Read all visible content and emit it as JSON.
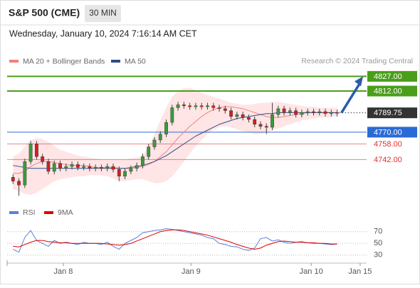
{
  "header": {
    "symbol": "S&P 500 (CME)",
    "timeframe": "30 MIN",
    "datetime": "Wednesday, January 10, 2024 7:16:14 AM CET"
  },
  "chart_data": [
    {
      "type": "candlestick",
      "source": "Research © 2024 Trading Central",
      "up_color": "#3a9a3a",
      "down_color": "#cc2222",
      "open": [
        4724,
        4720,
        4716,
        4740,
        4758,
        4745,
        4740,
        4730,
        4738,
        4733,
        4735,
        4737,
        4734,
        4735,
        4733,
        4734,
        4733,
        4735,
        4732,
        4725,
        4730,
        4733,
        4736,
        4745,
        4755,
        4762,
        4768,
        4780,
        4795,
        4798,
        4797,
        4796,
        4797,
        4796,
        4797,
        4795,
        4794,
        4792,
        4786,
        4788,
        4785,
        4783,
        4778,
        4776,
        4775,
        4788,
        4794,
        4790,
        4792,
        4788,
        4790,
        4791,
        4790,
        4791,
        4789,
        4790
      ],
      "high": [
        4727,
        4723,
        4743,
        4761,
        4761,
        4748,
        4743,
        4741,
        4741,
        4738,
        4740,
        4740,
        4738,
        4738,
        4737,
        4737,
        4738,
        4738,
        4735,
        4733,
        4736,
        4739,
        4748,
        4758,
        4765,
        4771,
        4783,
        4798,
        4801,
        4801,
        4800,
        4800,
        4800,
        4800,
        4800,
        4798,
        4797,
        4795,
        4791,
        4791,
        4788,
        4786,
        4781,
        4779,
        4800,
        4797,
        4797,
        4795,
        4795,
        4793,
        4794,
        4794,
        4794,
        4794,
        4793,
        4793
      ],
      "low": [
        4717,
        4705,
        4713,
        4737,
        4742,
        4737,
        4727,
        4727,
        4730,
        4730,
        4732,
        4731,
        4731,
        4730,
        4730,
        4730,
        4730,
        4729,
        4720,
        4722,
        4727,
        4730,
        4733,
        4742,
        4752,
        4759,
        4765,
        4777,
        4792,
        4794,
        4793,
        4793,
        4793,
        4793,
        4792,
        4791,
        4789,
        4783,
        4783,
        4782,
        4780,
        4775,
        4773,
        4768,
        4772,
        4785,
        4787,
        4787,
        4785,
        4785,
        4787,
        4787,
        4787,
        4786,
        4786,
        4786
      ],
      "close": [
        4720,
        4716,
        4740,
        4758,
        4745,
        4740,
        4730,
        4738,
        4733,
        4735,
        4737,
        4734,
        4735,
        4733,
        4734,
        4733,
        4735,
        4732,
        4725,
        4730,
        4733,
        4736,
        4745,
        4755,
        4762,
        4768,
        4780,
        4795,
        4798,
        4797,
        4796,
        4797,
        4796,
        4797,
        4795,
        4794,
        4792,
        4786,
        4788,
        4785,
        4783,
        4778,
        4776,
        4775,
        4788,
        4794,
        4790,
        4792,
        4788,
        4790,
        4791,
        4790,
        4791,
        4789,
        4790,
        4789.75
      ],
      "series": [
        {
          "name": "MA 20 + Bollinger Bands",
          "color": "#f08080",
          "band_color": "#ffdede",
          "values": [
            4728,
            4728,
            4730,
            4735,
            4738,
            4740,
            4740,
            4739,
            4738,
            4737,
            4736,
            4736,
            4736,
            4735,
            4734,
            4734,
            4734,
            4734,
            4733,
            4733,
            4733,
            4734,
            4735,
            4737,
            4740,
            4745,
            4750,
            4757,
            4764,
            4770,
            4776,
            4781,
            4786,
            4790,
            4793,
            4795,
            4796,
            4796,
            4795,
            4794,
            4792,
            4790,
            4788,
            4786,
            4785,
            4785,
            4786,
            4787,
            4788,
            4789,
            4790,
            4790,
            4790,
            4790,
            4790,
            4790
          ],
          "upper": [
            4745,
            4748,
            4755,
            4762,
            4764,
            4763,
            4760,
            4756,
            4752,
            4750,
            4748,
            4746,
            4745,
            4744,
            4743,
            4742,
            4742,
            4742,
            4742,
            4742,
            4743,
            4744,
            4746,
            4755,
            4768,
            4782,
            4795,
            4806,
            4812,
            4815,
            4815,
            4813,
            4810,
            4808,
            4806,
            4804,
            4802,
            4800,
            4799,
            4798,
            4798,
            4799,
            4800,
            4800,
            4801,
            4801,
            4800,
            4799,
            4798,
            4797,
            4796,
            4796,
            4795,
            4795,
            4795,
            4795
          ],
          "lower": [
            4712,
            4710,
            4707,
            4706,
            4708,
            4712,
            4716,
            4720,
            4722,
            4723,
            4724,
            4725,
            4725,
            4726,
            4726,
            4726,
            4725,
            4723,
            4720,
            4720,
            4721,
            4722,
            4722,
            4720,
            4718,
            4718,
            4720,
            4725,
            4732,
            4740,
            4748,
            4756,
            4762,
            4768,
            4772,
            4775,
            4776,
            4775,
            4773,
            4771,
            4770,
            4768,
            4768,
            4770,
            4772,
            4774,
            4776,
            4778,
            4780,
            4782,
            4783,
            4784,
            4785,
            4785,
            4786,
            4786
          ]
        },
        {
          "name": "MA 50",
          "color": "#2a4d8f",
          "values": [
            4736,
            4735,
            4734,
            4733,
            4733,
            4733,
            4733,
            4733,
            4733,
            4733,
            4733,
            4733,
            4733,
            4733,
            4733,
            4733,
            4733,
            4733,
            4733,
            4733,
            4734,
            4735,
            4736,
            4738,
            4740,
            4743,
            4746,
            4750,
            4754,
            4758,
            4762,
            4766,
            4769,
            4772,
            4775,
            4778,
            4780,
            4782,
            4784,
            4785,
            4786,
            4787,
            4788,
            4789,
            4789,
            4790,
            4790,
            4790,
            4790,
            4790,
            4790,
            4790,
            4790,
            4790,
            4790,
            4790
          ]
        }
      ],
      "levels": [
        {
          "value": 4827,
          "label": "4827.00",
          "color": "#4a9e1a",
          "boxed": true
        },
        {
          "value": 4812,
          "label": "4812.00",
          "color": "#4a9e1a",
          "boxed": true
        },
        {
          "value": 4770,
          "label": "4770.00",
          "color": "#2a6ad6",
          "boxed": true
        },
        {
          "value": 4758,
          "label": "4758.00",
          "color": "#e03030",
          "boxed": false
        },
        {
          "value": 4742,
          "label": "4742.00",
          "color": "#e03030",
          "boxed": false
        }
      ],
      "last": {
        "value": 4789.75,
        "label": "4789.75",
        "color": "#333333"
      },
      "ylim": [
        4698,
        4836
      ],
      "xlim": [
        -1,
        60
      ]
    },
    {
      "type": "line",
      "series": [
        {
          "name": "RSI",
          "color": "#5b7fd6",
          "values": [
            40,
            35,
            60,
            72,
            55,
            50,
            45,
            55,
            50,
            52,
            50,
            48,
            52,
            50,
            50,
            48,
            52,
            45,
            40,
            50,
            55,
            60,
            68,
            70,
            72,
            73,
            75,
            74,
            72,
            70,
            68,
            66,
            64,
            60,
            58,
            50,
            48,
            45,
            44,
            40,
            38,
            42,
            58,
            60,
            54,
            56,
            52,
            50,
            52,
            53,
            51,
            50,
            50,
            49,
            48,
            49
          ]
        },
        {
          "name": "9MA",
          "color": "#e00000",
          "values": [
            45,
            44,
            48,
            52,
            55,
            55,
            53,
            52,
            51,
            51,
            50,
            50,
            50,
            50,
            50,
            50,
            49,
            48,
            47,
            48,
            50,
            54,
            58,
            62,
            66,
            70,
            72,
            73,
            73,
            72,
            70,
            68,
            66,
            64,
            61,
            58,
            55,
            52,
            48,
            45,
            42,
            40,
            42,
            47,
            50,
            53,
            54,
            53,
            52,
            52,
            51,
            51,
            50,
            50,
            49,
            49
          ]
        }
      ],
      "ylim": [
        14,
        83
      ],
      "yticks": [
        70,
        50,
        30
      ],
      "xlim": [
        -1,
        60
      ],
      "xticks": [
        {
          "value": 8.54,
          "label": "Jan 8"
        },
        {
          "value": 30.2,
          "label": "Jan 9"
        },
        {
          "value": 50.6,
          "label": "Jan 10"
        },
        {
          "value": 58.9,
          "label": "Jan 15"
        }
      ]
    }
  ]
}
